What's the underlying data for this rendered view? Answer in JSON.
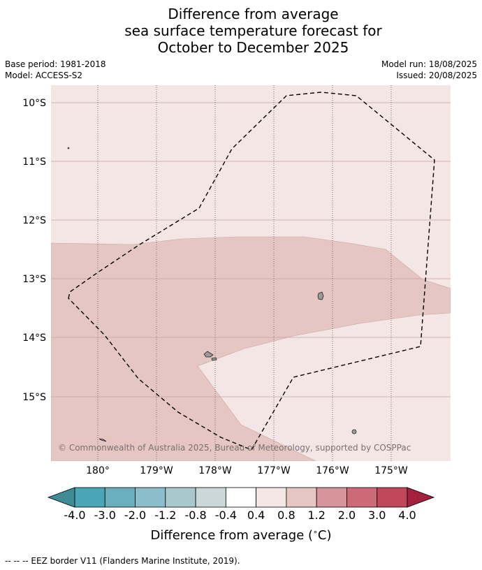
{
  "title": {
    "line1": "Difference from average",
    "line2": "sea surface temperature forecast for",
    "line3": "October to December 2025"
  },
  "meta_left": {
    "base_period": "Base period: 1981-2018",
    "model": "Model: ACCESS-S2"
  },
  "meta_right": {
    "model_run": "Model run: 18/08/2025",
    "issued": "Issued: 20/08/2025"
  },
  "map": {
    "lat_labels": [
      "10°S",
      "11°S",
      "12°S",
      "13°S",
      "14°S",
      "15°S"
    ],
    "lon_labels": [
      "180°",
      "179°W",
      "178°W",
      "177°W",
      "176°W",
      "175°W"
    ],
    "copyright": "© Commonwealth of Australia 2025, Bureau of Meteorology, supported by COSPPac",
    "colors": {
      "light_anomaly": "#f4e6e5",
      "moderate_anomaly": "#e6c6c2",
      "land": "#9a9a9a"
    }
  },
  "colorbar": {
    "tick_labels": [
      "-4.0",
      "-3.0",
      "-2.0",
      "-1.2",
      "-0.8",
      "-0.4",
      "0.4",
      "0.8",
      "1.2",
      "2.0",
      "3.0",
      "4.0"
    ],
    "colors": [
      "#3f8b96",
      "#4aa5b6",
      "#6aafbd",
      "#8bbdca",
      "#a9c8cd",
      "#cbd8da",
      "#ffffff",
      "#f4e6e5",
      "#e6c6c2",
      "#d6949b",
      "#cc6a78",
      "#c1475b",
      "#a3203e"
    ],
    "label": "Difference from average ($^\\circ$C)",
    "label_text": "Difference from average (",
    "label_degree": "∘",
    "label_unit": "C)"
  },
  "footer": {
    "legend": "--  --  -- EEZ border V11 (Flanders Marine Institute, 2019)."
  }
}
